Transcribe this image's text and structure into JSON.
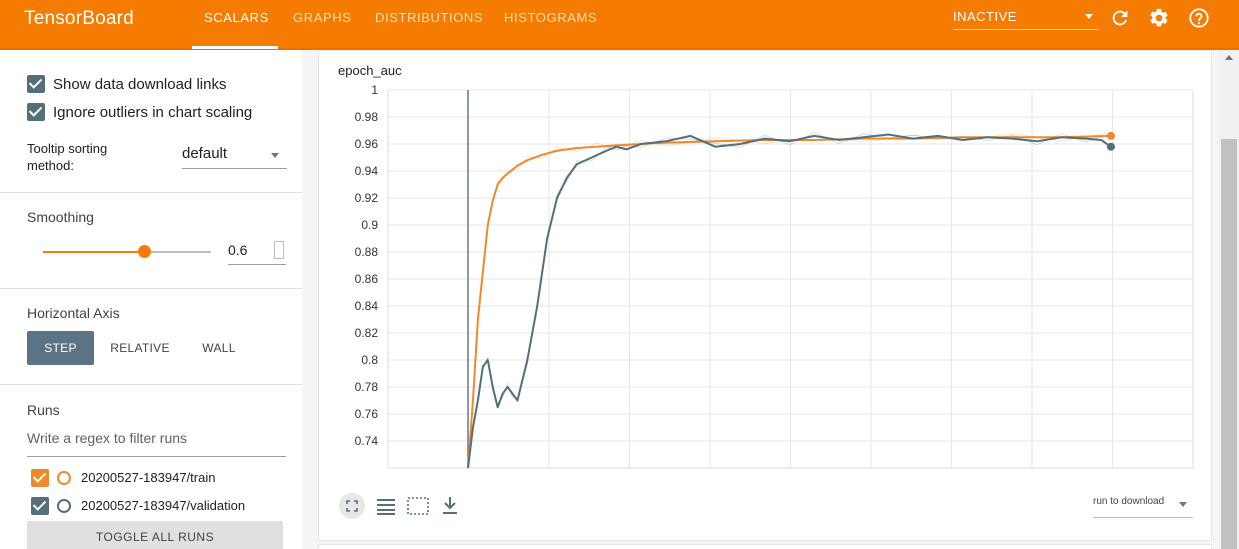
{
  "app": {
    "title": "TensorBoard"
  },
  "tabs": [
    "SCALARS",
    "GRAPHS",
    "DISTRIBUTIONS",
    "HISTOGRAMS"
  ],
  "status_select": {
    "value": "INACTIVE"
  },
  "icons": {
    "refresh": "refresh-icon",
    "settings": "gear-icon",
    "help": "help-icon"
  },
  "sidebar": {
    "show_download_links": {
      "label": "Show data download links",
      "checked": true
    },
    "ignore_outliers": {
      "label": "Ignore outliers in chart scaling",
      "checked": true
    },
    "tooltip_sorting": {
      "label_line1": "Tooltip sorting",
      "label_line2": "method:",
      "value": "default"
    },
    "smoothing": {
      "title": "Smoothing",
      "value": "0.6",
      "level": 0.6
    },
    "horizontal_axis": {
      "title": "Horizontal Axis",
      "options": [
        "STEP",
        "RELATIVE",
        "WALL"
      ],
      "selected": "STEP"
    },
    "runs": {
      "title": "Runs",
      "filter_placeholder": "Write a regex to filter runs",
      "items": [
        {
          "name": "20200527-183947/train",
          "color": "#ef8a2c",
          "checked": true
        },
        {
          "name": "20200527-183947/validation",
          "color": "#546e7a",
          "checked": true
        }
      ],
      "toggle_label": "TOGGLE ALL RUNS"
    }
  },
  "card": {
    "title": "epoch_auc",
    "run_download": "run to download"
  },
  "colors": {
    "accent": "#f57c00",
    "train": "#ef8a2c",
    "validation": "#546e7a"
  },
  "chart_data": {
    "type": "line",
    "title": "epoch_auc",
    "ylim": [
      0.72,
      1.0
    ],
    "yticks": [
      "1",
      "0.98",
      "0.96",
      "0.94",
      "0.92",
      "0.9",
      "0.88",
      "0.86",
      "0.84",
      "0.82",
      "0.8",
      "0.78",
      "0.76",
      "0.74"
    ],
    "xlabel": "",
    "ylabel": "",
    "grid": true,
    "series": [
      {
        "name": "20200527-183947/train",
        "color": "#ef8a2c",
        "x": [
          0,
          1,
          2,
          3,
          4,
          5,
          6,
          7,
          8,
          10,
          12,
          15,
          18,
          22,
          26,
          30,
          35,
          40,
          50,
          60,
          70,
          80,
          90,
          100,
          110,
          120,
          130
        ],
        "y": [
          0.72,
          0.77,
          0.83,
          0.865,
          0.9,
          0.918,
          0.93,
          0.935,
          0.938,
          0.944,
          0.948,
          0.952,
          0.955,
          0.957,
          0.958,
          0.959,
          0.96,
          0.961,
          0.962,
          0.963,
          0.963,
          0.964,
          0.964,
          0.965,
          0.965,
          0.965,
          0.966
        ]
      },
      {
        "name": "20200527-183947/validation",
        "color": "#546e7a",
        "x": [
          0,
          1,
          2,
          3,
          4,
          5,
          6,
          7,
          8,
          9,
          10,
          12,
          14,
          16,
          18,
          20,
          22,
          25,
          28,
          30,
          32,
          35,
          40,
          45,
          50,
          55,
          60,
          65,
          70,
          75,
          80,
          85,
          90,
          95,
          100,
          105,
          110,
          115,
          120,
          125,
          128,
          130
        ],
        "y": [
          0.72,
          0.75,
          0.77,
          0.795,
          0.8,
          0.78,
          0.765,
          0.775,
          0.78,
          0.775,
          0.77,
          0.8,
          0.84,
          0.89,
          0.92,
          0.935,
          0.945,
          0.95,
          0.955,
          0.958,
          0.956,
          0.96,
          0.962,
          0.966,
          0.958,
          0.96,
          0.964,
          0.962,
          0.966,
          0.963,
          0.965,
          0.967,
          0.964,
          0.966,
          0.963,
          0.965,
          0.964,
          0.962,
          0.965,
          0.964,
          0.963,
          0.958
        ]
      }
    ]
  }
}
